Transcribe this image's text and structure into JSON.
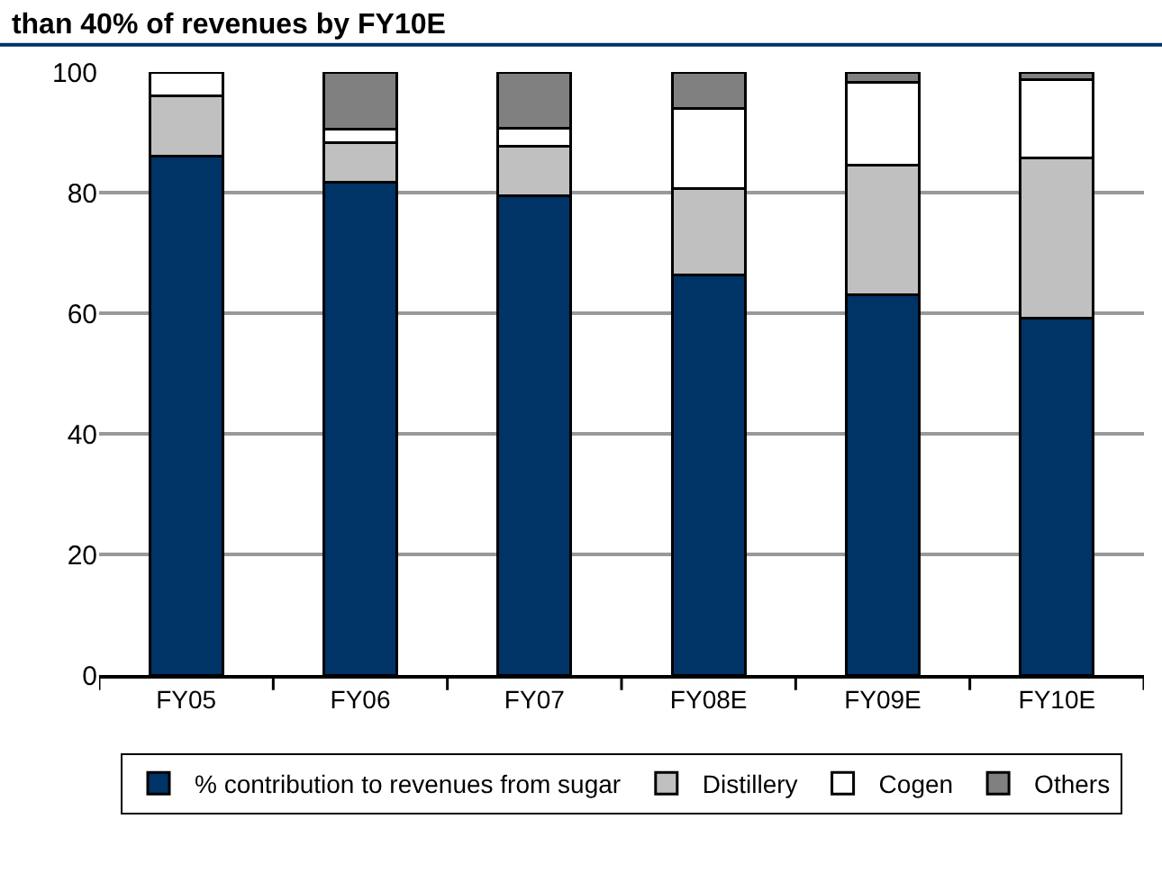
{
  "chart_data": {
    "type": "bar",
    "stacked": true,
    "title": "than 40% of revenues by FY10E",
    "categories": [
      "FY05",
      "FY06",
      "FY07",
      "FY08E",
      "FY09E",
      "FY10E"
    ],
    "series": [
      {
        "name": "% contribution to revenues from sugar",
        "color": "#003366",
        "values": [
          86,
          81.7,
          79.5,
          66.4,
          63,
          59.2
        ]
      },
      {
        "name": "Distillery",
        "color": "#c0c0c0",
        "values": [
          10,
          6.6,
          8.2,
          14.3,
          21.5,
          26.5
        ]
      },
      {
        "name": "Cogen",
        "color": "#ffffff",
        "values": [
          4,
          2.2,
          3,
          13.3,
          13.8,
          13.1
        ]
      },
      {
        "name": "Others",
        "color": "#808080",
        "values": [
          null,
          9.5,
          9.3,
          6,
          1.7,
          1.2
        ]
      }
    ],
    "ylim": [
      0,
      100
    ],
    "yticks": [
      0,
      20,
      40,
      60,
      80,
      100
    ],
    "grid": "y",
    "legend": "bottom"
  }
}
